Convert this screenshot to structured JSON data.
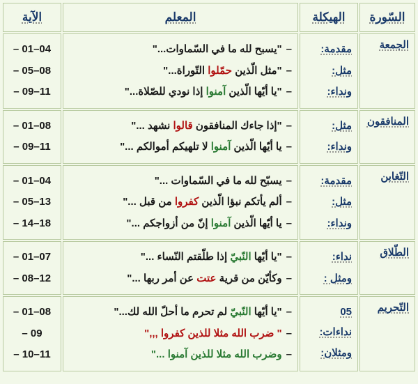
{
  "headers": {
    "surah": "السّورة",
    "haykala": "الهيكلة",
    "maalim": "المعلم",
    "aya": "الآية"
  },
  "rows": [
    {
      "surah": "الجمعة",
      "haykala": [
        "مقدمة:",
        "مثل:",
        "ونداء:"
      ],
      "maalim": [
        [
          {
            "t": "\"يسبح لله ما في السّماوات...\"",
            "c": "c-dark"
          }
        ],
        [
          {
            "t": "\"مثل الّذين ",
            "c": "c-dark"
          },
          {
            "t": "حمّلوا",
            "c": "c-red"
          },
          {
            "t": " التّوراة...\"",
            "c": "c-dark"
          }
        ],
        [
          {
            "t": "\"يا أيّها الّذين ",
            "c": "c-dark"
          },
          {
            "t": "آمنوا",
            "c": "c-green"
          },
          {
            "t": " إذا نودي للصّلاة...\"",
            "c": "c-dark"
          }
        ]
      ],
      "ayat": [
        "01–04",
        "05–08",
        "09–11"
      ]
    },
    {
      "surah": "المنافقون",
      "haykala": [
        "مثل:",
        "ونداء:"
      ],
      "maalim": [
        [
          {
            "t": "\"إذا جاءك المنافقون ",
            "c": "c-dark"
          },
          {
            "t": "قالوا",
            "c": "c-red"
          },
          {
            "t": " نشهد ...\"",
            "c": "c-dark"
          }
        ],
        [
          {
            "t": "يا أيّها الّذين ",
            "c": "c-dark"
          },
          {
            "t": "آمنوا",
            "c": "c-green"
          },
          {
            "t": " لا تلهيكم أموالكم ...\"",
            "c": "c-dark"
          }
        ]
      ],
      "ayat": [
        "01–08",
        "09–11"
      ]
    },
    {
      "surah": "التّغابن",
      "haykala": [
        "مقدمة:",
        "مثل:",
        "ونداء:"
      ],
      "maalim": [
        [
          {
            "t": "يسبّح لله ما في السّماوات ...\"",
            "c": "c-dark"
          }
        ],
        [
          {
            "t": "ألم يأتكم نبؤا الّذين ",
            "c": "c-dark"
          },
          {
            "t": "كفروا",
            "c": "c-red"
          },
          {
            "t": " من قبل ...\"",
            "c": "c-dark"
          }
        ],
        [
          {
            "t": "يا أيّها الّذين ",
            "c": "c-dark"
          },
          {
            "t": "آمنوا",
            "c": "c-green"
          },
          {
            "t": " إنّ من أزواجكم ...\"",
            "c": "c-dark"
          }
        ]
      ],
      "ayat": [
        "01–04",
        "05–13",
        "14–18"
      ]
    },
    {
      "surah": "الطّلاق",
      "haykala": [
        "نداء:",
        "ومثل :"
      ],
      "maalim": [
        [
          {
            "t": "\"يا أيّها ",
            "c": "c-dark"
          },
          {
            "t": "النّبيّ",
            "c": "c-green"
          },
          {
            "t": " إذا طلّقتم النّساء ...\"",
            "c": "c-dark"
          }
        ],
        [
          {
            "t": "وكأيّن من قرية ",
            "c": "c-dark"
          },
          {
            "t": "عتت",
            "c": "c-red"
          },
          {
            "t": " عن أمر ربها ...\"",
            "c": "c-dark"
          }
        ]
      ],
      "ayat": [
        "01–07",
        "08–12"
      ]
    },
    {
      "surah": "التّحريم",
      "haykala": [
        "05 نداءات:",
        "ومثلان:"
      ],
      "maalim": [
        [
          {
            "t": "\"يا أيّها ",
            "c": "c-dark"
          },
          {
            "t": "النّبيّ",
            "c": "c-green"
          },
          {
            "t": " لم تحرم ما أحلّ الله لك...\"",
            "c": "c-dark"
          }
        ],
        [
          {
            "t": "\" ضرب الله مثلا للذين ",
            "c": "c-red"
          },
          {
            "t": "كفروا",
            "c": "c-red"
          },
          {
            "t": " ,,,\"",
            "c": "c-red"
          }
        ],
        [
          {
            "t": "وضرب الله مثلا للذين ",
            "c": "c-green"
          },
          {
            "t": "آمنوا",
            "c": "c-green"
          },
          {
            "t": "  ...\"",
            "c": "c-green"
          }
        ]
      ],
      "ayat": [
        "01–08",
        "09",
        "10–11"
      ]
    }
  ]
}
